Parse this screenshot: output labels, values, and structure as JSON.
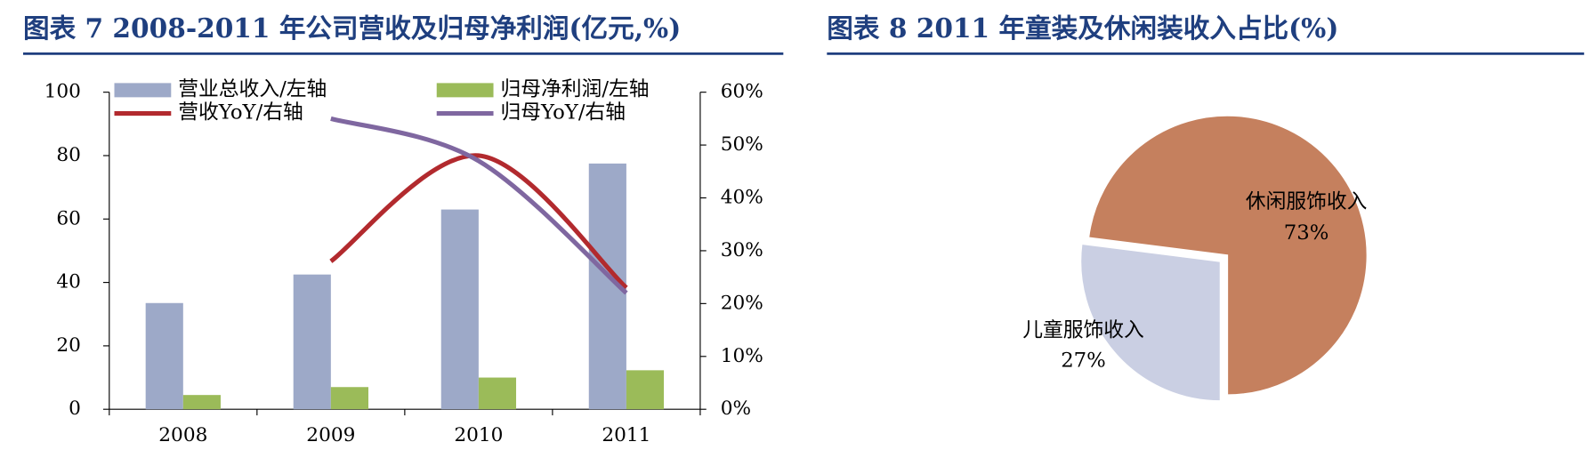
{
  "chart_data": [
    {
      "type": "bar",
      "title": "图表 7   2008-2011 年公司营收及归母净利润(亿元,%)",
      "categories": [
        "2008",
        "2009",
        "2010",
        "2011"
      ],
      "series": [
        {
          "name": "营业总收入/左轴",
          "color": "#9da9c8",
          "values": [
            33.5,
            42.5,
            63,
            77.5
          ]
        },
        {
          "name": "归母净利润/左轴",
          "color": "#9bbb59",
          "values": [
            4.5,
            7,
            10,
            12.3
          ]
        },
        {
          "name": "营收YoY/右轴",
          "color": "#b22a2e",
          "type": "line",
          "axis": "y2",
          "values": [
            null,
            28,
            48,
            23
          ]
        },
        {
          "name": "归母YoY/右轴",
          "color": "#7f67a0",
          "type": "line",
          "axis": "y2",
          "values": [
            null,
            55,
            47,
            22
          ]
        }
      ],
      "ylim": [
        0,
        100
      ],
      "yticks": [
        0,
        20,
        40,
        60,
        80,
        100
      ],
      "y2lim": [
        0,
        60
      ],
      "y2ticks": [
        {
          "value": 0,
          "label": "0%"
        },
        {
          "value": 10,
          "label": "10%"
        },
        {
          "value": 20,
          "label": "20%"
        },
        {
          "value": 30,
          "label": "30%"
        },
        {
          "value": 40,
          "label": "40%"
        },
        {
          "value": 50,
          "label": "50%"
        },
        {
          "value": 60,
          "label": "60%"
        }
      ],
      "legend": "top"
    },
    {
      "type": "pie",
      "title": "图表 8   2011 年童装及休闲装收入占比(%)",
      "categories": [
        "儿童服饰收入",
        "休闲服饰收入"
      ],
      "values": [
        27,
        73
      ],
      "value_labels": [
        "27%",
        "73%"
      ],
      "colors": [
        "#cacfe3",
        "#c5805e"
      ]
    }
  ]
}
